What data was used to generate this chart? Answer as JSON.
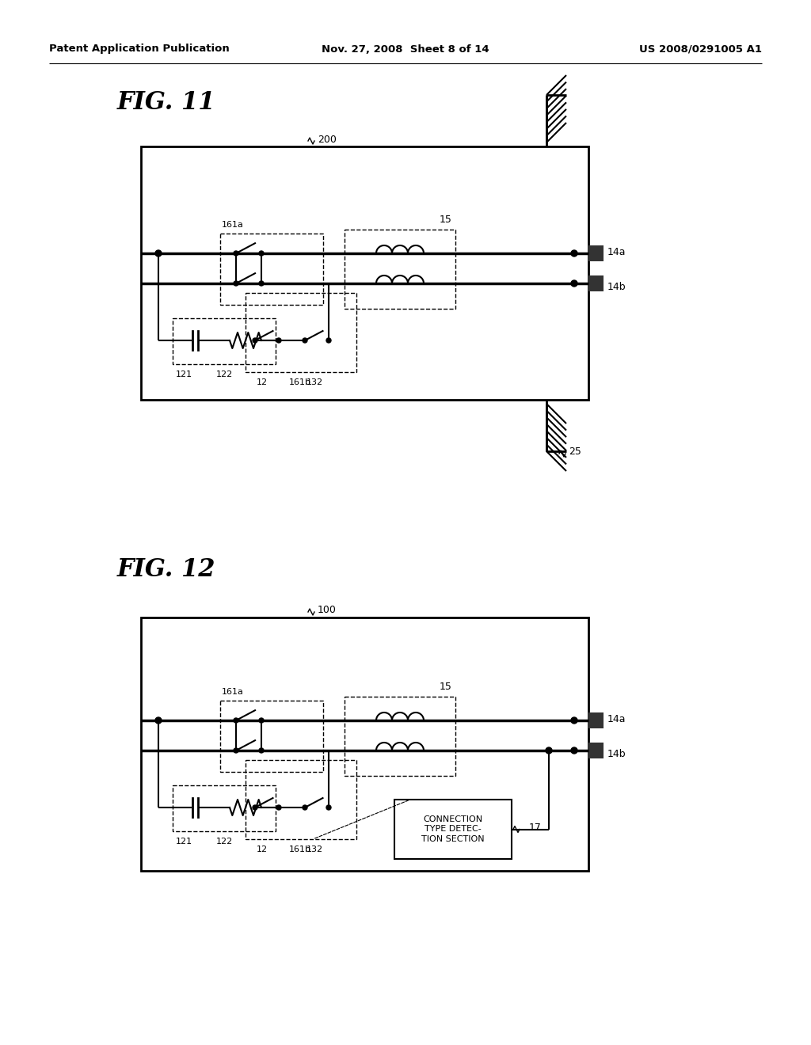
{
  "bg_color": "#ffffff",
  "header_left": "Patent Application Publication",
  "header_mid": "Nov. 27, 2008  Sheet 8 of 14",
  "header_right": "US 2008/0291005 A1",
  "fig11_label": "FIG. 11",
  "fig12_label": "FIG. 12",
  "label_200": "200",
  "label_100": "100",
  "label_14a_1": "14a",
  "label_14b_1": "14b",
  "label_25": "25",
  "label_14a_2": "14a",
  "label_14b_2": "14b",
  "label_17": "17",
  "label_15_1": "15",
  "label_15_2": "15",
  "label_161a_1": "161a",
  "label_161b_1": "161b",
  "label_161a_2": "161a",
  "label_161b_2": "161b",
  "label_121_1": "121",
  "label_122_1": "122",
  "label_12_1": "12",
  "label_132_1": "132",
  "label_121_2": "121",
  "label_122_2": "122",
  "label_12_2": "12",
  "label_132_2": "132",
  "connection_box_text": "CONNECTION\nTYPE DETEC-\nTION SECTION"
}
